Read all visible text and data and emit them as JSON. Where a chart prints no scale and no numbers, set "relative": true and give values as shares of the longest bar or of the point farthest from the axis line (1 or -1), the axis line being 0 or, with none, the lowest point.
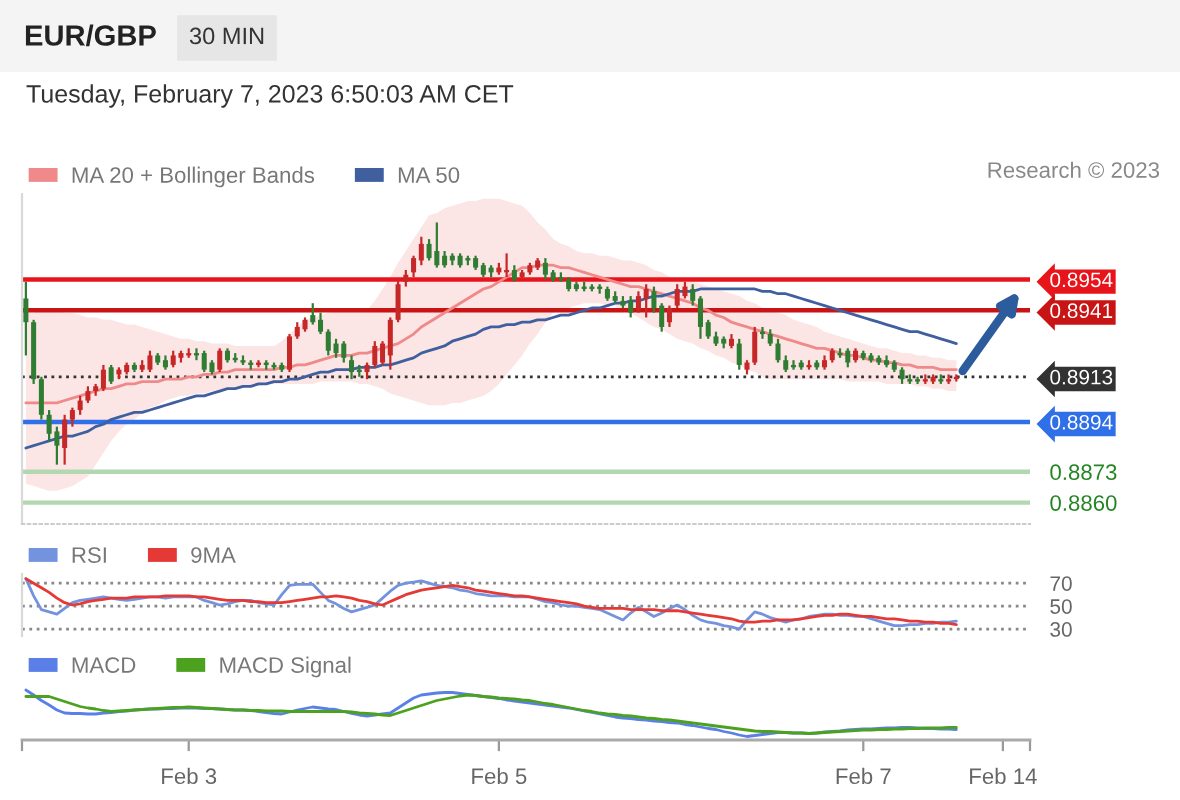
{
  "chart_data": [
    {
      "type": "candlestick",
      "title": "EUR/GBP",
      "subtitle": "Tuesday, February 7, 2023 6:50:03 AM CET",
      "annotations": [
        "30 MIN",
        "Research © 2023"
      ],
      "categories": [
        null,
        null,
        null,
        null,
        null,
        null,
        null,
        null,
        null,
        null,
        null,
        null,
        null,
        null,
        null,
        null,
        null,
        null,
        null,
        null,
        null,
        null,
        null,
        null,
        null,
        null,
        null,
        null,
        null,
        null,
        null,
        null,
        null,
        null,
        null,
        null,
        null,
        null,
        null,
        null,
        null,
        null,
        null,
        null,
        null,
        null,
        null,
        null,
        null,
        null,
        null,
        null,
        null,
        null,
        null,
        null,
        null,
        null,
        null,
        null,
        null,
        null,
        null,
        null,
        null,
        null,
        null,
        null,
        null,
        null,
        null,
        null,
        null,
        null,
        null,
        null,
        null,
        null,
        null,
        null,
        null,
        null,
        null,
        null,
        null,
        null,
        null,
        null,
        null,
        null,
        null,
        null,
        null,
        null,
        null,
        null,
        null,
        null,
        null,
        null,
        null,
        null,
        null,
        null,
        null,
        null,
        null,
        null,
        null,
        null,
        null,
        null,
        null,
        null,
        null,
        null,
        null,
        null,
        null,
        null,
        null
      ],
      "ohlc": [
        [
          0.8946,
          0.8953,
          0.8922,
          0.8936
        ],
        [
          0.8936,
          0.8937,
          0.891,
          0.8912
        ],
        [
          0.8912,
          0.8913,
          0.8895,
          0.8897
        ],
        [
          0.8897,
          0.8899,
          0.8886,
          0.8889
        ],
        [
          0.889,
          0.8892,
          0.8876,
          0.8884
        ],
        [
          0.8883,
          0.8897,
          0.8876,
          0.8895
        ],
        [
          0.8895,
          0.89,
          0.8892,
          0.8899
        ],
        [
          0.8899,
          0.8905,
          0.8897,
          0.8903
        ],
        [
          0.8903,
          0.8909,
          0.8902,
          0.8907
        ],
        [
          0.8907,
          0.891,
          0.8905,
          0.8909
        ],
        [
          0.8908,
          0.8918,
          0.8907,
          0.8916
        ],
        [
          0.8917,
          0.8918,
          0.891,
          0.8911
        ],
        [
          0.8914,
          0.8917,
          0.8912,
          0.8916
        ],
        [
          0.8915,
          0.8919,
          0.8914,
          0.8918
        ],
        [
          0.8918,
          0.8919,
          0.8915,
          0.8916
        ],
        [
          0.8916,
          0.892,
          0.8915,
          0.8918
        ],
        [
          0.8916,
          0.8924,
          0.8915,
          0.8922
        ],
        [
          0.8922,
          0.8923,
          0.8918,
          0.8919
        ],
        [
          0.892,
          0.8922,
          0.8916,
          0.8917
        ],
        [
          0.8918,
          0.8924,
          0.8917,
          0.8922
        ],
        [
          0.8921,
          0.8924,
          0.8919,
          0.8923
        ],
        [
          0.8922,
          0.8925,
          0.8921,
          0.8923
        ],
        [
          0.8923,
          0.8925,
          0.892,
          0.8922
        ],
        [
          0.8923,
          0.8924,
          0.8915,
          0.8916
        ],
        [
          0.8919,
          0.892,
          0.8914,
          0.8915
        ],
        [
          0.8916,
          0.8925,
          0.8915,
          0.8924
        ],
        [
          0.8924,
          0.8925,
          0.8919,
          0.892
        ],
        [
          0.8921,
          0.8923,
          0.8919,
          0.892
        ],
        [
          0.892,
          0.8922,
          0.8918,
          0.8919
        ],
        [
          0.8919,
          0.892,
          0.8916,
          0.8918
        ],
        [
          0.8918,
          0.892,
          0.8917,
          0.8919
        ],
        [
          0.8919,
          0.892,
          0.8916,
          0.8918
        ],
        [
          0.8918,
          0.8919,
          0.8916,
          0.8917
        ],
        [
          0.8918,
          0.8919,
          0.8915,
          0.8916
        ],
        [
          0.8916,
          0.8931,
          0.8915,
          0.893
        ],
        [
          0.893,
          0.8936,
          0.8929,
          0.8934
        ],
        [
          0.8933,
          0.8938,
          0.8932,
          0.8937
        ],
        [
          0.8939,
          0.8944,
          0.8935,
          0.8936
        ],
        [
          0.8937,
          0.894,
          0.8931,
          0.8932
        ],
        [
          0.8932,
          0.8933,
          0.8922,
          0.8924
        ],
        [
          0.8927,
          0.8929,
          0.8921,
          0.8923
        ],
        [
          0.8927,
          0.8928,
          0.8919,
          0.8921
        ],
        [
          0.892,
          0.8922,
          0.8912,
          0.8915
        ],
        [
          0.8916,
          0.8918,
          0.8913,
          0.8915
        ],
        [
          0.8915,
          0.8919,
          0.8912,
          0.8918
        ],
        [
          0.8918,
          0.8928,
          0.8917,
          0.8926
        ],
        [
          0.8919,
          0.8928,
          0.8918,
          0.8927
        ],
        [
          0.8922,
          0.8938,
          0.8916,
          0.8937
        ],
        [
          0.8937,
          0.8954,
          0.8936,
          0.8952
        ],
        [
          0.8953,
          0.8958,
          0.8951,
          0.8956
        ],
        [
          0.8957,
          0.8964,
          0.8955,
          0.8963
        ],
        [
          0.8962,
          0.8972,
          0.896,
          0.8969
        ],
        [
          0.8969,
          0.8971,
          0.8962,
          0.8963
        ],
        [
          0.8966,
          0.8978,
          0.8959,
          0.896
        ],
        [
          0.8964,
          0.8966,
          0.8959,
          0.896
        ],
        [
          0.8964,
          0.8965,
          0.896,
          0.8962
        ],
        [
          0.8964,
          0.8965,
          0.8959,
          0.896
        ],
        [
          0.8963,
          0.8964,
          0.896,
          0.8962
        ],
        [
          0.8963,
          0.8964,
          0.8958,
          0.8959
        ],
        [
          0.896,
          0.8961,
          0.8955,
          0.8956
        ],
        [
          0.8959,
          0.896,
          0.8955,
          0.8957
        ],
        [
          0.8957,
          0.8961,
          0.8956,
          0.8959
        ],
        [
          0.8957,
          0.8965,
          0.8955,
          0.8958
        ],
        [
          0.8958,
          0.896,
          0.8953,
          0.8954
        ],
        [
          0.8955,
          0.8958,
          0.8954,
          0.8957
        ],
        [
          0.8957,
          0.8961,
          0.8956,
          0.896
        ],
        [
          0.8959,
          0.8963,
          0.8958,
          0.8962
        ],
        [
          0.8961,
          0.8963,
          0.8954,
          0.8956
        ],
        [
          0.8957,
          0.8958,
          0.8953,
          0.8954
        ],
        [
          0.8955,
          0.8957,
          0.8953,
          0.8954
        ],
        [
          0.8954,
          0.8955,
          0.8949,
          0.895
        ],
        [
          0.8952,
          0.8953,
          0.8949,
          0.895
        ],
        [
          0.8951,
          0.8953,
          0.8949,
          0.895
        ],
        [
          0.8951,
          0.8952,
          0.8949,
          0.895
        ],
        [
          0.8951,
          0.8952,
          0.8948,
          0.895
        ],
        [
          0.895,
          0.8951,
          0.8945,
          0.8946
        ],
        [
          0.8947,
          0.8949,
          0.8944,
          0.8945
        ],
        [
          0.8945,
          0.8947,
          0.8942,
          0.8943
        ],
        [
          0.8945,
          0.8947,
          0.8938,
          0.894
        ],
        [
          0.8941,
          0.8949,
          0.894,
          0.8947
        ],
        [
          0.8946,
          0.8952,
          0.8938,
          0.895
        ],
        [
          0.8949,
          0.8951,
          0.894,
          0.8942
        ],
        [
          0.8943,
          0.8944,
          0.8932,
          0.8934
        ],
        [
          0.8936,
          0.8943,
          0.8934,
          0.8942
        ],
        [
          0.8943,
          0.8952,
          0.8942,
          0.895
        ],
        [
          0.8947,
          0.8953,
          0.8946,
          0.8951
        ],
        [
          0.895,
          0.8952,
          0.8943,
          0.8945
        ],
        [
          0.8946,
          0.8947,
          0.8929,
          0.8934
        ],
        [
          0.8936,
          0.8937,
          0.8929,
          0.893
        ],
        [
          0.893,
          0.8932,
          0.8926,
          0.8927
        ],
        [
          0.8929,
          0.893,
          0.8925,
          0.8927
        ],
        [
          0.8926,
          0.8931,
          0.8925,
          0.8929
        ],
        [
          0.8927,
          0.8929,
          0.8916,
          0.8918
        ],
        [
          0.8916,
          0.892,
          0.8914,
          0.8919
        ],
        [
          0.8919,
          0.8934,
          0.8918,
          0.8932
        ],
        [
          0.8932,
          0.8934,
          0.8929,
          0.8931
        ],
        [
          0.8931,
          0.8933,
          0.8926,
          0.8927
        ],
        [
          0.8927,
          0.8929,
          0.8919,
          0.892
        ],
        [
          0.892,
          0.8922,
          0.8915,
          0.8916
        ],
        [
          0.8918,
          0.892,
          0.8916,
          0.8917
        ],
        [
          0.8919,
          0.892,
          0.8916,
          0.8917
        ],
        [
          0.8917,
          0.892,
          0.8916,
          0.8918
        ],
        [
          0.8919,
          0.892,
          0.8916,
          0.8917
        ],
        [
          0.8917,
          0.8922,
          0.8916,
          0.892
        ],
        [
          0.892,
          0.8925,
          0.8919,
          0.8924
        ],
        [
          0.8923,
          0.8925,
          0.8921,
          0.8922
        ],
        [
          0.8924,
          0.8925,
          0.8917,
          0.8919
        ],
        [
          0.892,
          0.8925,
          0.8919,
          0.8924
        ],
        [
          0.8923,
          0.8924,
          0.892,
          0.8921
        ],
        [
          0.8922,
          0.8923,
          0.8919,
          0.892
        ],
        [
          0.8921,
          0.8922,
          0.8918,
          0.8919
        ],
        [
          0.892,
          0.8922,
          0.8917,
          0.8918
        ],
        [
          0.8919,
          0.892,
          0.8915,
          0.8916
        ],
        [
          0.8916,
          0.8917,
          0.891,
          0.8912
        ],
        [
          0.8912,
          0.8914,
          0.891,
          0.8911
        ],
        [
          0.8912,
          0.8913,
          0.891,
          0.8911
        ],
        [
          0.8911,
          0.8914,
          0.891,
          0.8912
        ],
        [
          0.8911,
          0.8914,
          0.891,
          0.8913
        ],
        [
          0.8912,
          0.8914,
          0.891,
          0.8911
        ],
        [
          0.8911,
          0.8914,
          0.891,
          0.8912
        ],
        [
          0.8912,
          0.8914,
          0.8911,
          0.8913
        ]
      ],
      "colors": [
        "#2e7d32",
        "#2e7d32",
        "#2e7d32",
        "#2e7d32",
        "#2e7d32",
        "#c62828",
        "#c62828",
        "#c62828",
        "#c62828",
        "#c62828",
        "#c62828",
        "#2e7d32",
        "#c62828",
        "#c62828",
        "#2e7d32",
        "#c62828",
        "#c62828",
        "#2e7d32",
        "#2e7d32",
        "#c62828",
        "#c62828",
        "#c62828",
        "#2e7d32",
        "#2e7d32",
        "#2e7d32",
        "#c62828",
        "#2e7d32",
        "#2e7d32",
        "#2e7d32",
        "#2e7d32",
        "#c62828",
        "#2e7d32",
        "#2e7d32",
        "#2e7d32",
        "#c62828",
        "#c62828",
        "#c62828",
        "#2e7d32",
        "#2e7d32",
        "#2e7d32",
        "#2e7d32",
        "#2e7d32",
        "#2e7d32",
        "#2e7d32",
        "#c62828",
        "#c62828",
        "#c62828",
        "#c62828",
        "#c62828",
        "#c62828",
        "#c62828",
        "#c62828",
        "#2e7d32",
        "#2e7d32",
        "#2e7d32",
        "#2e7d32",
        "#2e7d32",
        "#2e7d32",
        "#2e7d32",
        "#2e7d32",
        "#2e7d32",
        "#c62828",
        "#c62828",
        "#2e7d32",
        "#c62828",
        "#c62828",
        "#c62828",
        "#2e7d32",
        "#2e7d32",
        "#2e7d32",
        "#2e7d32",
        "#2e7d32",
        "#2e7d32",
        "#2e7d32",
        "#2e7d32",
        "#2e7d32",
        "#2e7d32",
        "#2e7d32",
        "#2e7d32",
        "#c62828",
        "#c62828",
        "#2e7d32",
        "#2e7d32",
        "#c62828",
        "#c62828",
        "#c62828",
        "#2e7d32",
        "#2e7d32",
        "#2e7d32",
        "#2e7d32",
        "#2e7d32",
        "#c62828",
        "#2e7d32",
        "#c62828",
        "#c62828",
        "#2e7d32",
        "#2e7d32",
        "#2e7d32",
        "#2e7d32",
        "#2e7d32",
        "#2e7d32",
        "#c62828",
        "#2e7d32",
        "#c62828",
        "#c62828",
        "#2e7d32",
        "#2e7d32",
        "#c62828",
        "#2e7d32",
        "#2e7d32",
        "#2e7d32",
        "#2e7d32",
        "#2e7d32",
        "#2e7d32",
        "#2e7d32",
        "#2e7d32",
        "#c62828",
        "#c62828",
        "#2e7d32",
        "#c62828",
        "#c62828"
      ],
      "series": [
        {
          "name": "MA 20 + Bollinger Bands",
          "type": "line",
          "color": "#f08a8a",
          "values": [
            0.8902,
            0.8902,
            0.8902,
            0.8902,
            0.8902,
            0.8903,
            0.8904,
            0.8905,
            0.8906,
            0.8907,
            0.8908,
            0.8908,
            0.8909,
            0.891,
            0.891,
            0.8911,
            0.8911,
            0.8911,
            0.8912,
            0.8912,
            0.8912,
            0.8913,
            0.8913,
            0.8914,
            0.8914,
            0.8915,
            0.8915,
            0.8916,
            0.8916,
            0.8916,
            0.8916,
            0.8916,
            0.8916,
            0.8917,
            0.8917,
            0.8918,
            0.8918,
            0.8919,
            0.892,
            0.8921,
            0.8922,
            0.8922,
            0.8922,
            0.8923,
            0.8923,
            0.8924,
            0.8925,
            0.8926,
            0.8927,
            0.8929,
            0.8931,
            0.8934,
            0.8936,
            0.8938,
            0.894,
            0.8942,
            0.8944,
            0.8946,
            0.8948,
            0.895,
            0.8951,
            0.8953,
            0.8955,
            0.8957,
            0.8959,
            0.8959,
            0.896,
            0.896,
            0.896,
            0.8959,
            0.8959,
            0.8958,
            0.8957,
            0.8956,
            0.8955,
            0.8954,
            0.8953,
            0.8952,
            0.8951,
            0.8951,
            0.895,
            0.8949,
            0.8948,
            0.8947,
            0.8946,
            0.8945,
            0.8944,
            0.8942,
            0.8941,
            0.8939,
            0.8938,
            0.8936,
            0.8935,
            0.8934,
            0.8933,
            0.8932,
            0.8931,
            0.893,
            0.8929,
            0.8928,
            0.8927,
            0.8926,
            0.8925,
            0.8925,
            0.8924,
            0.8923,
            0.8922,
            0.8922,
            0.8921,
            0.892,
            0.892,
            0.8919,
            0.8919,
            0.8918,
            0.8918,
            0.8917,
            0.8917,
            0.8917,
            0.8916,
            0.8916,
            0.8916
          ],
          "lower": [
            0.8868,
            0.8867,
            0.8866,
            0.8865,
            0.8865,
            0.8866,
            0.8867,
            0.8869,
            0.8871,
            0.8876,
            0.8881,
            0.8886,
            0.889,
            0.8893,
            0.8895,
            0.8898,
            0.89,
            0.8901,
            0.8903,
            0.8904,
            0.8905,
            0.8905,
            0.8906,
            0.8906,
            0.8907,
            0.8907,
            0.8908,
            0.8908,
            0.8909,
            0.8909,
            0.8909,
            0.891,
            0.891,
            0.891,
            0.891,
            0.891,
            0.891,
            0.891,
            0.8911,
            0.8911,
            0.8911,
            0.8911,
            0.8911,
            0.891,
            0.891,
            0.8909,
            0.8908,
            0.8906,
            0.8905,
            0.8904,
            0.8903,
            0.8902,
            0.8901,
            0.8901,
            0.8901,
            0.8902,
            0.8902,
            0.8903,
            0.8904,
            0.8905,
            0.8907,
            0.891,
            0.8914,
            0.8918,
            0.8922,
            0.8927,
            0.8931,
            0.8936,
            0.894,
            0.8941,
            0.8942,
            0.8943,
            0.8944,
            0.8944,
            0.8944,
            0.8943,
            0.8943,
            0.8941,
            0.894,
            0.8938,
            0.8936,
            0.8934,
            0.8933,
            0.8931,
            0.8929,
            0.8928,
            0.8927,
            0.8925,
            0.8924,
            0.8922,
            0.8921,
            0.8919,
            0.8918,
            0.8916,
            0.8915,
            0.8913,
            0.8912,
            0.8912,
            0.8912,
            0.8912,
            0.8912,
            0.8912,
            0.8912,
            0.8912,
            0.8912,
            0.8912,
            0.8911,
            0.8911,
            0.8911,
            0.8911,
            0.8911,
            0.891,
            0.891,
            0.891,
            0.891,
            0.8909,
            0.8909,
            0.8908,
            0.8908,
            0.8907,
            0.8907
          ],
          "upper": [
            0.894,
            0.894,
            0.8941,
            0.8941,
            0.8941,
            0.894,
            0.894,
            0.8939,
            0.8938,
            0.8938,
            0.8937,
            0.8937,
            0.8936,
            0.8935,
            0.8935,
            0.8934,
            0.8933,
            0.8932,
            0.8931,
            0.893,
            0.8929,
            0.8929,
            0.8928,
            0.8928,
            0.8927,
            0.8927,
            0.8927,
            0.8926,
            0.8926,
            0.8926,
            0.8926,
            0.8926,
            0.8926,
            0.8928,
            0.8931,
            0.8934,
            0.8937,
            0.8938,
            0.8939,
            0.894,
            0.8941,
            0.8941,
            0.8941,
            0.8941,
            0.8941,
            0.8945,
            0.895,
            0.8955,
            0.8961,
            0.8966,
            0.8971,
            0.8976,
            0.8981,
            0.8982,
            0.8984,
            0.8985,
            0.8986,
            0.8987,
            0.8987,
            0.8988,
            0.8988,
            0.8988,
            0.8987,
            0.8986,
            0.8985,
            0.8982,
            0.8978,
            0.8975,
            0.8971,
            0.8969,
            0.8968,
            0.8966,
            0.8965,
            0.8965,
            0.8964,
            0.8964,
            0.8963,
            0.8962,
            0.8962,
            0.8961,
            0.896,
            0.8958,
            0.8957,
            0.8955,
            0.8954,
            0.8953,
            0.8953,
            0.8952,
            0.8951,
            0.895,
            0.8949,
            0.8948,
            0.8947,
            0.8945,
            0.8944,
            0.8942,
            0.8941,
            0.894,
            0.8939,
            0.8937,
            0.8936,
            0.8935,
            0.8934,
            0.8932,
            0.8931,
            0.893,
            0.8929,
            0.8928,
            0.8927,
            0.8926,
            0.8925,
            0.8925,
            0.8924,
            0.8923,
            0.8923,
            0.8922,
            0.8922,
            0.8921,
            0.8921,
            0.892,
            0.892
          ]
        },
        {
          "name": "MA 50",
          "type": "line",
          "color": "#3f5f9f",
          "values": [
            0.8883,
            0.8884,
            0.8885,
            0.8886,
            0.8887,
            0.8888,
            0.8888,
            0.8889,
            0.889,
            0.8892,
            0.8893,
            0.8895,
            0.8896,
            0.8897,
            0.8898,
            0.8898,
            0.8899,
            0.89,
            0.8901,
            0.8902,
            0.8903,
            0.8904,
            0.8905,
            0.8905,
            0.8906,
            0.8907,
            0.8908,
            0.8908,
            0.8909,
            0.8909,
            0.891,
            0.891,
            0.8911,
            0.8911,
            0.8912,
            0.8912,
            0.8913,
            0.8914,
            0.8915,
            0.8915,
            0.8916,
            0.8916,
            0.8916,
            0.8917,
            0.8917,
            0.8917,
            0.8918,
            0.8918,
            0.8919,
            0.892,
            0.8921,
            0.8923,
            0.8924,
            0.8925,
            0.8926,
            0.8928,
            0.8929,
            0.893,
            0.8931,
            0.8933,
            0.8934,
            0.8934,
            0.8935,
            0.8935,
            0.8936,
            0.8936,
            0.8937,
            0.8937,
            0.8938,
            0.8939,
            0.8939,
            0.894,
            0.8941,
            0.8942,
            0.8942,
            0.8943,
            0.8944,
            0.8944,
            0.8945,
            0.8945,
            0.8946,
            0.8947,
            0.8947,
            0.8948,
            0.8949,
            0.8949,
            0.8949,
            0.895,
            0.895,
            0.895,
            0.895,
            0.895,
            0.895,
            0.895,
            0.895,
            0.8949,
            0.8949,
            0.8948,
            0.8948,
            0.8947,
            0.8946,
            0.8945,
            0.8944,
            0.8943,
            0.8942,
            0.8941,
            0.894,
            0.8939,
            0.8938,
            0.8937,
            0.8936,
            0.8935,
            0.8934,
            0.8933,
            0.8932,
            0.8932,
            0.8931,
            0.893,
            0.8929,
            0.8928,
            0.8927
          ]
        }
      ],
      "ref_lines": [
        {
          "axis": "y",
          "value": 0.8954,
          "color": "#e8141b"
        },
        {
          "axis": "y",
          "value": 0.8941,
          "color": "#c81414"
        },
        {
          "axis": "y",
          "value": 0.8913,
          "color": "#333333",
          "line_style": "dotted"
        },
        {
          "axis": "y",
          "value": 0.8894,
          "color": "#2f6fe8"
        },
        {
          "axis": "y",
          "value": 0.8873,
          "color": "#b2d8b2"
        },
        {
          "axis": "y",
          "value": 0.886,
          "color": "#b2d8b2"
        }
      ],
      "ylim": [
        0.8851,
        0.899
      ],
      "yticks": [
        0.8954,
        0.8941,
        0.8913,
        0.8894,
        0.8873,
        {
          "value": 0.886,
          "label": "0.8860"
        }
      ],
      "legend": "top left",
      "tick_labels": "y"
    },
    {
      "type": "line",
      "categories": [
        null,
        null,
        null,
        null,
        null,
        null,
        null,
        null,
        null,
        null,
        null,
        null,
        null,
        null,
        null,
        null,
        null,
        null,
        null,
        null,
        null,
        null,
        null,
        null,
        null,
        null,
        null,
        null,
        null,
        null,
        null,
        null,
        null,
        null,
        null,
        null,
        null,
        null,
        null,
        null,
        null,
        null,
        null,
        null,
        null,
        null,
        null,
        null,
        null,
        null,
        null,
        null,
        null,
        null,
        null,
        null,
        null,
        null,
        null,
        null,
        null,
        null,
        null,
        null,
        null,
        null,
        null,
        null,
        null,
        null,
        null,
        null,
        null,
        null,
        null,
        null,
        null,
        null,
        null,
        null,
        null,
        null,
        null,
        null,
        null,
        null,
        null,
        null,
        null,
        null,
        null,
        null,
        null,
        null,
        null,
        null,
        null,
        null,
        null,
        null,
        null,
        null,
        null,
        null,
        null,
        null,
        null,
        null,
        null,
        null,
        null,
        null,
        null,
        null,
        null,
        null,
        null,
        null,
        null,
        null,
        null
      ],
      "series": [
        {
          "name": "RSI",
          "color": "#7393df",
          "values": [
            74,
            59,
            47,
            45,
            43,
            48,
            53,
            55,
            56,
            57,
            58,
            57,
            56,
            55,
            56,
            57,
            58,
            58,
            57,
            58,
            58,
            58,
            58,
            55,
            53,
            51,
            52,
            54,
            55,
            55,
            53,
            52,
            51,
            60,
            68,
            69,
            69,
            69,
            62,
            55,
            52,
            48,
            45,
            47,
            49,
            51,
            57,
            63,
            68,
            70,
            71,
            72,
            70,
            68,
            67,
            66,
            64,
            63,
            61,
            60,
            59,
            59,
            59,
            58,
            58,
            58,
            56,
            54,
            53,
            51,
            50,
            50,
            49,
            48,
            47,
            44,
            41,
            38,
            44,
            49,
            45,
            41,
            44,
            48,
            51,
            47,
            42,
            38,
            36,
            35,
            33,
            32,
            30,
            38,
            45,
            43,
            40,
            38,
            36,
            38,
            39,
            41,
            42,
            43,
            43,
            42,
            42,
            41,
            41,
            39,
            37,
            35,
            33,
            33,
            34,
            34,
            35,
            35,
            36,
            36,
            37
          ]
        },
        {
          "name": "9MA",
          "color": "#e53935",
          "values": [
            74,
            70,
            66,
            62,
            57,
            53,
            51,
            52,
            54,
            55,
            56,
            57,
            57,
            57,
            58,
            58,
            58,
            58,
            59,
            59,
            59,
            59,
            58,
            58,
            57,
            56,
            55,
            55,
            55,
            54,
            54,
            53,
            53,
            53,
            54,
            55,
            56,
            57,
            58,
            58,
            59,
            58,
            57,
            55,
            54,
            52,
            51,
            54,
            57,
            60,
            62,
            64,
            65,
            66,
            67,
            68,
            67,
            66,
            64,
            63,
            62,
            61,
            60,
            59,
            59,
            58,
            57,
            56,
            55,
            54,
            53,
            52,
            50,
            49,
            48,
            48,
            48,
            48,
            47,
            47,
            47,
            47,
            46,
            46,
            46,
            45,
            44,
            43,
            42,
            41,
            40,
            39,
            37,
            36,
            36,
            37,
            37,
            38,
            38,
            38,
            39,
            40,
            41,
            42,
            42,
            43,
            43,
            42,
            41,
            41,
            40,
            39,
            39,
            38,
            37,
            37,
            36,
            36,
            35,
            35,
            34
          ]
        }
      ],
      "ylim": [
        24,
        78
      ],
      "yticks": [
        70,
        50,
        30
      ],
      "grid": "y",
      "legend": "top left",
      "tick_labels": "y"
    },
    {
      "type": "line",
      "relative": true,
      "categories": [
        null,
        null,
        null,
        null,
        null,
        null,
        null,
        null,
        null,
        null,
        null,
        null,
        null,
        null,
        null,
        null,
        null,
        null,
        null,
        null,
        null,
        "Feb 3",
        null,
        null,
        null,
        null,
        null,
        null,
        null,
        null,
        null,
        null,
        null,
        null,
        null,
        null,
        null,
        null,
        null,
        null,
        null,
        null,
        null,
        null,
        null,
        null,
        null,
        null,
        null,
        null,
        null,
        null,
        null,
        null,
        null,
        null,
        null,
        null,
        null,
        null,
        null,
        "Feb 5",
        null,
        null,
        null,
        null,
        null,
        null,
        null,
        null,
        null,
        null,
        null,
        null,
        null,
        null,
        null,
        null,
        null,
        null,
        null,
        null,
        null,
        null,
        null,
        null,
        null,
        null,
        null,
        null,
        null,
        null,
        null,
        null,
        null,
        null,
        null,
        null,
        null,
        null,
        null,
        null,
        null,
        null,
        null,
        null,
        null,
        null,
        "Feb 7",
        null,
        null,
        null,
        null,
        null,
        null,
        null,
        null,
        null,
        null,
        null,
        null,
        null,
        null,
        null,
        null,
        null,
        "Feb 14",
        null,
        null,
        null
      ],
      "series": [
        {
          "name": "MACD",
          "color": "#5a80e8",
          "values": [
            1,
            0.9,
            0.79,
            0.7,
            0.6,
            0.54,
            0.53,
            0.53,
            0.52,
            0.52,
            0.54,
            0.55,
            0.57,
            0.58,
            0.6,
            0.61,
            0.62,
            0.62,
            0.63,
            0.63,
            0.64,
            0.64,
            0.64,
            0.63,
            0.63,
            0.62,
            0.61,
            0.6,
            0.6,
            0.59,
            0.57,
            0.55,
            0.53,
            0.52,
            0.56,
            0.6,
            0.63,
            0.66,
            0.64,
            0.62,
            0.61,
            0.57,
            0.53,
            0.5,
            0.48,
            0.5,
            0.52,
            0.54,
            0.64,
            0.74,
            0.84,
            0.9,
            0.92,
            0.94,
            0.95,
            0.95,
            0.93,
            0.91,
            0.89,
            0.87,
            0.85,
            0.83,
            0.8,
            0.78,
            0.76,
            0.74,
            0.72,
            0.7,
            0.68,
            0.66,
            0.64,
            0.61,
            0.58,
            0.55,
            0.52,
            0.49,
            0.46,
            0.44,
            0.43,
            0.41,
            0.4,
            0.38,
            0.37,
            0.35,
            0.34,
            0.31,
            0.29,
            0.26,
            0.23,
            0.21,
            0.17,
            0.14,
            0.1,
            0.07,
            0.09,
            0.11,
            0.13,
            0.15,
            0.15,
            0.14,
            0.14,
            0.13,
            0.14,
            0.16,
            0.17,
            0.18,
            0.2,
            0.21,
            0.22,
            0.22,
            0.23,
            0.24,
            0.24,
            0.25,
            0.25,
            0.24,
            0.23,
            0.23,
            0.22,
            0.22,
            0.21,
            null,
            null,
            null,
            null,
            null,
            null,
            null,
            null,
            null
          ]
        },
        {
          "name": "MACD Signal",
          "color": "#4ca21e",
          "values": [
            0.87,
            0.87,
            0.87,
            0.87,
            0.82,
            0.77,
            0.72,
            0.67,
            0.64,
            0.62,
            0.59,
            0.57,
            0.58,
            0.59,
            0.6,
            0.61,
            0.62,
            0.63,
            0.64,
            0.65,
            0.65,
            0.66,
            0.65,
            0.64,
            0.63,
            0.62,
            0.61,
            0.6,
            0.6,
            0.59,
            0.59,
            0.58,
            0.58,
            0.58,
            0.57,
            0.57,
            0.57,
            0.57,
            0.57,
            0.57,
            0.57,
            0.57,
            0.56,
            0.54,
            0.53,
            0.52,
            0.5,
            0.49,
            0.54,
            0.59,
            0.64,
            0.69,
            0.74,
            0.79,
            0.82,
            0.85,
            0.88,
            0.9,
            0.89,
            0.87,
            0.86,
            0.84,
            0.83,
            0.82,
            0.8,
            0.79,
            0.76,
            0.73,
            0.71,
            0.68,
            0.65,
            0.62,
            0.59,
            0.57,
            0.54,
            0.52,
            0.51,
            0.49,
            0.48,
            0.46,
            0.44,
            0.43,
            0.41,
            0.4,
            0.38,
            0.36,
            0.34,
            0.32,
            0.3,
            0.28,
            0.26,
            0.24,
            0.22,
            0.2,
            0.18,
            0.17,
            0.17,
            0.16,
            0.15,
            0.14,
            0.14,
            0.13,
            0.14,
            0.15,
            0.16,
            0.17,
            0.18,
            0.19,
            0.2,
            0.2,
            0.21,
            0.21,
            0.22,
            0.22,
            0.23,
            0.23,
            0.24,
            0.24,
            0.24,
            0.25,
            0.25,
            null,
            null,
            null,
            null,
            null,
            null,
            null,
            null,
            null
          ]
        }
      ],
      "legend": "top left",
      "tick_labels": "x"
    }
  ]
}
